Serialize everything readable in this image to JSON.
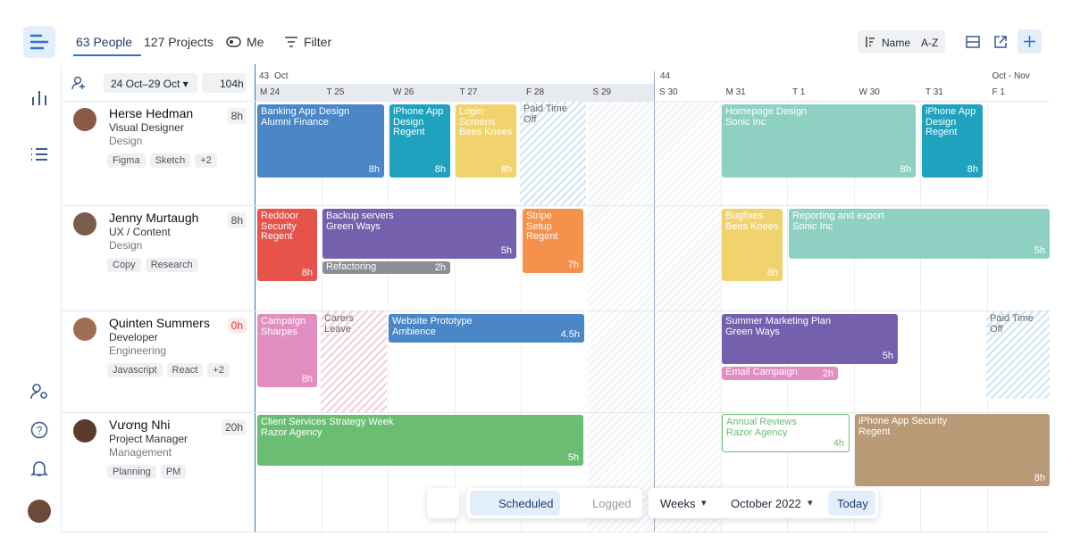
{
  "nav": {
    "people": "63 People",
    "projects": "127 Projects",
    "me": "Me",
    "filter": "Filter",
    "sort_name": "Name",
    "sort_order": "A-Z"
  },
  "schedule": {
    "date_range": "24 Oct–29 Oct",
    "total_hours": "104h",
    "weeks": [
      {
        "number": "43",
        "month": "Oct"
      },
      {
        "number": "44"
      }
    ],
    "month_label": "Oct - Nov",
    "days": [
      "M 24",
      "T 25",
      "W 26",
      "T 27",
      "F 28",
      "S 29",
      "S 30",
      "M 31",
      "T 1",
      "W 30",
      "T 31",
      "F 1"
    ],
    "people": [
      {
        "name": "Herse Hedman",
        "role": "Visual Designer",
        "department": "Design",
        "hours": "8h",
        "tags": [
          "Figma",
          "Sketch",
          "+2"
        ],
        "tasks": [
          {
            "title": "Banking App Design",
            "client": "Alumni Finance",
            "hours": "8h"
          },
          {
            "title": "iPhone App Design",
            "client": "Regent",
            "hours": "8h"
          },
          {
            "title": "Login Screens",
            "client": "Bees Knees",
            "hours": "8h"
          },
          {
            "title": "Paid Time Off"
          },
          {
            "title": "Homepage Design",
            "client": "Sonic Inc",
            "hours": "8h"
          },
          {
            "title": "iPhone App Design",
            "client": "Regent",
            "hours": "8h"
          }
        ]
      },
      {
        "name": "Jenny Murtaugh",
        "role": "UX / Content",
        "department": "Design",
        "hours": "8h",
        "tags": [
          "Copy",
          "Research"
        ],
        "tasks": [
          {
            "title": "Reddoor Security",
            "client": "Regent",
            "hours": "8h"
          },
          {
            "title": "Backup servers",
            "client": "Green Ways",
            "hours": "5h"
          },
          {
            "title": "Refactoring",
            "hours": "2h"
          },
          {
            "title": "Stripe Setup",
            "client": "Regent",
            "hours": "7h"
          },
          {
            "title": "Bugfixes",
            "client": "Bees Knees",
            "hours": "8h"
          },
          {
            "title": "Reporting and export",
            "client": "Sonic Inc",
            "hours": "5h"
          }
        ]
      },
      {
        "name": "Quinten Summers",
        "role": "Developer",
        "department": "Engineering",
        "hours": "0h",
        "tags": [
          "Javascript",
          "React",
          "+2"
        ],
        "tasks": [
          {
            "title": "Campaign",
            "client": "Sharpes",
            "hours": "8h"
          },
          {
            "title": "Carers Leave"
          },
          {
            "title": "Website Prototype",
            "client": "Ambience",
            "hours": "4.5h"
          },
          {
            "title": "Summer Marketing Plan",
            "client": "Green Ways",
            "hours": "5h"
          },
          {
            "title": "Email Campaign",
            "hours": "2h"
          },
          {
            "title": "Paid Time Off"
          }
        ]
      },
      {
        "name": "Vương Nhi",
        "role": "Project Manager",
        "department": "Management",
        "hours": "20h",
        "tags": [
          "Planning",
          "PM"
        ],
        "tasks": [
          {
            "title": "Client Services Strategy Week",
            "client": "Razor Agency",
            "hours": "5h"
          },
          {
            "title": "Annual Reviews",
            "client": "Razor Agency",
            "hours": "4h"
          },
          {
            "title": "iPhone App Security",
            "client": "Regent",
            "hours": "8h"
          }
        ]
      }
    ]
  },
  "toolbar": {
    "scheduled": "Scheduled",
    "logged": "Logged",
    "period": "Weeks",
    "month": "October 2022",
    "today": "Today"
  }
}
